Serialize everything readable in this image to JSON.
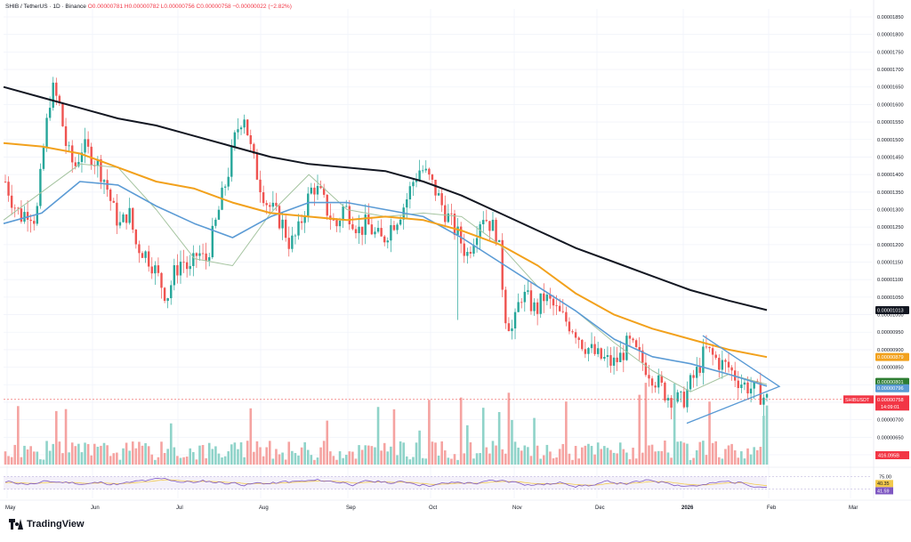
{
  "header": {
    "symbol": "SHIB / TetherUS · 1D · Binance",
    "ohlc": "O0.00000781 H0.00000782 L0.00000756 C0.00000758 −0.00000022 (−2.82%)"
  },
  "branding": {
    "name": "TradingView"
  },
  "chart_data": {
    "type": "candlestick",
    "pair": "SHIB/USDT",
    "timeframe": "1D",
    "exchange": "Binance",
    "x_months": [
      "May",
      "Jun",
      "Jul",
      "Aug",
      "Sep",
      "Oct",
      "Nov",
      "Dec",
      "2026",
      "Feb",
      "Mar"
    ],
    "y_ticks": [
      "0.00001850",
      "0.00001800",
      "0.00001750",
      "0.00001700",
      "0.00001650",
      "0.00001600",
      "0.00001550",
      "0.00001500",
      "0.00001450",
      "0.00001400",
      "0.00001350",
      "0.00001300",
      "0.00001250",
      "0.00001200",
      "0.00001150",
      "0.00001100",
      "0.00001050",
      "0.00001000",
      "0.00000950",
      "0.00000900",
      "0.00000850",
      "0.00000800",
      "0.00000750",
      "0.00000700",
      "0.00000650",
      "0.00000600"
    ],
    "ylim": [
      6e-06,
      1.87e-05
    ],
    "price_series_close": [
      1380,
      1320,
      1280,
      1300,
      1270,
      1480,
      1650,
      1600,
      1470,
      1420,
      1480,
      1460,
      1430,
      1380,
      1300,
      1250,
      1300,
      1200,
      1180,
      1150,
      1100,
      1050,
      1120,
      1160,
      1120,
      1180,
      1150,
      1230,
      1320,
      1410,
      1520,
      1580,
      1460,
      1380,
      1320,
      1290,
      1260,
      1200,
      1230,
      1310,
      1370,
      1340,
      1290,
      1250,
      1310,
      1280,
      1240,
      1260,
      1230,
      1210,
      1250,
      1280,
      1320,
      1380,
      1420,
      1390,
      1350,
      1300,
      1260,
      1220,
      1170,
      1230,
      1290,
      1260,
      1230,
      1000,
      950,
      1060,
      1040,
      1010,
      1050,
      1030,
      1000,
      980,
      960,
      920,
      900,
      880,
      870,
      860,
      880,
      920,
      890,
      860,
      830,
      800,
      770,
      760,
      750,
      800,
      840,
      900,
      880,
      860,
      850,
      820,
      800,
      790,
      775,
      758
    ],
    "sma_black_points": [
      1650,
      1620,
      1590,
      1560,
      1540,
      1510,
      1480,
      1450,
      1430,
      1420,
      1410,
      1380,
      1340,
      1290,
      1240,
      1190,
      1150,
      1110,
      1070,
      1040,
      1013
    ],
    "sma_orange_points": [
      1490,
      1480,
      1460,
      1420,
      1380,
      1360,
      1320,
      1290,
      1280,
      1270,
      1280,
      1270,
      1240,
      1200,
      1140,
      1060,
      1000,
      960,
      930,
      900,
      879
    ],
    "sma_blue_points": [
      1260,
      1290,
      1380,
      1370,
      1310,
      1260,
      1220,
      1280,
      1320,
      1320,
      1300,
      1280,
      1220,
      1150,
      1080,
      1010,
      930,
      880,
      860,
      830,
      796
    ],
    "sma_green_points": [
      1270,
      1350,
      1430,
      1420,
      1300,
      1160,
      1140,
      1290,
      1400,
      1300,
      1280,
      1290,
      1280,
      1200,
      1080,
      1010,
      920,
      840,
      780,
      830,
      801
    ],
    "price_labels": {
      "black": "0.00001013",
      "orange": "0.00000879",
      "green": "0.00000801",
      "blue": "0.00000796",
      "current_symbol": "SHIBUSDT",
      "current_price": "0.00000758",
      "countdown": "14:09:01",
      "volume": "416.095B"
    },
    "rsi": {
      "levels": [
        "75.00",
        "25.00"
      ],
      "label_yellow": "40.35",
      "label_purple": "41.59"
    },
    "colors": {
      "up": "#26a69a",
      "down": "#ef5350",
      "sma_black": "#131722",
      "sma_orange": "#f2a11c",
      "sma_blue": "#5b9bd5",
      "sma_green": "#a5c4a0",
      "triangle": "#5b9bd5",
      "rsi_line": "#7e57c2",
      "rsi_ma": "#f2c94c"
    }
  }
}
